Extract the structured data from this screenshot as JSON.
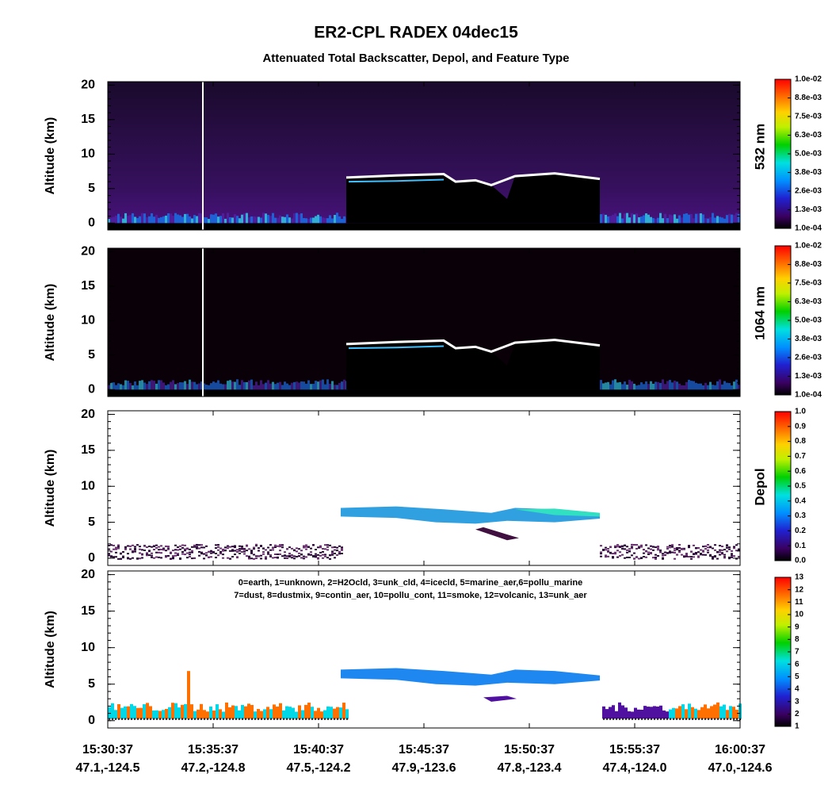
{
  "title": "ER2-CPL RADEX 04dec15",
  "subtitle": "Attenuated Total Backscatter, Depol, and Feature Type",
  "x_axis": {
    "times": [
      "15:30:37",
      "15:35:37",
      "15:40:37",
      "15:45:37",
      "15:50:37",
      "15:55:37",
      "16:00:37"
    ],
    "locations": [
      "47.1,-124.5",
      "47.2,-124.8",
      "47.5,-124.2",
      "47.9,-123.6",
      "47.8,-123.4",
      "47.4,-124.0",
      "47.0,-124.6"
    ]
  },
  "chart_data": [
    {
      "type": "curtain",
      "ylabel": "Altitude (km)",
      "ylim": [
        -1,
        20.5
      ],
      "yticks": [
        0,
        5,
        10,
        15,
        20
      ],
      "colorbar": {
        "label": "532 nm",
        "clim": [
          0.0001,
          0.01
        ],
        "ticks": [
          {
            "value": 0.0001,
            "label": "1.0e-04"
          },
          {
            "value": 0.00134,
            "label": "1.3e-03"
          },
          {
            "value": 0.00258,
            "label": "2.6e-03"
          },
          {
            "value": 0.00381,
            "label": "3.8e-03"
          },
          {
            "value": 0.00505,
            "label": "5.0e-03"
          },
          {
            "value": 0.00629,
            "label": "6.3e-03"
          },
          {
            "value": 0.00753,
            "label": "7.5e-03"
          },
          {
            "value": 0.00876,
            "label": "8.8e-03"
          },
          {
            "value": 0.01,
            "label": "1.0e-02"
          }
        ]
      }
    },
    {
      "type": "curtain",
      "ylabel": "Altitude (km)",
      "ylim": [
        -1,
        20.5
      ],
      "yticks": [
        0,
        5,
        10,
        15,
        20
      ],
      "colorbar": {
        "label": "1064 nm",
        "clim": [
          0.0001,
          0.01
        ],
        "ticks": [
          {
            "value": 0.0001,
            "label": "1.0e-04"
          },
          {
            "value": 0.00134,
            "label": "1.3e-03"
          },
          {
            "value": 0.00258,
            "label": "2.6e-03"
          },
          {
            "value": 0.00381,
            "label": "3.8e-03"
          },
          {
            "value": 0.00505,
            "label": "5.0e-03"
          },
          {
            "value": 0.00629,
            "label": "6.3e-03"
          },
          {
            "value": 0.00753,
            "label": "7.5e-03"
          },
          {
            "value": 0.00876,
            "label": "8.8e-03"
          },
          {
            "value": 0.01,
            "label": "1.0e-02"
          }
        ]
      }
    },
    {
      "type": "depol",
      "ylabel": "Altitude (km)",
      "ylim": [
        -1,
        20.5
      ],
      "yticks": [
        0,
        5,
        10,
        15,
        20
      ],
      "colorbar": {
        "label": "Depol",
        "clim": [
          0,
          1
        ],
        "ticks": [
          {
            "value": 0,
            "label": "0.0"
          },
          0.1,
          0.2,
          0.3,
          0.4,
          0.5,
          0.6,
          0.7,
          0.8,
          0.9,
          {
            "value": 1,
            "label": "1.0"
          }
        ]
      }
    },
    {
      "type": "feature",
      "ylabel": "Altitude (km)",
      "ylim": [
        -1,
        20.5
      ],
      "yticks": [
        0,
        5,
        10,
        15,
        20
      ],
      "annotations": [
        "0=earth, 1=unknown, 2=H2Ocld, 3=unk_cld, 4=icecld, 5=marine_aer,6=pollu_marine",
        "7=dust, 8=dustmix, 9=contin_aer, 10=pollu_cont, 11=smoke, 12=volcanic, 13=unk_aer"
      ],
      "colorbar": {
        "clim": [
          1,
          13
        ],
        "ticks": [
          1,
          2,
          3,
          4,
          5,
          6,
          7,
          8,
          9,
          10,
          11,
          12,
          13
        ]
      }
    }
  ]
}
